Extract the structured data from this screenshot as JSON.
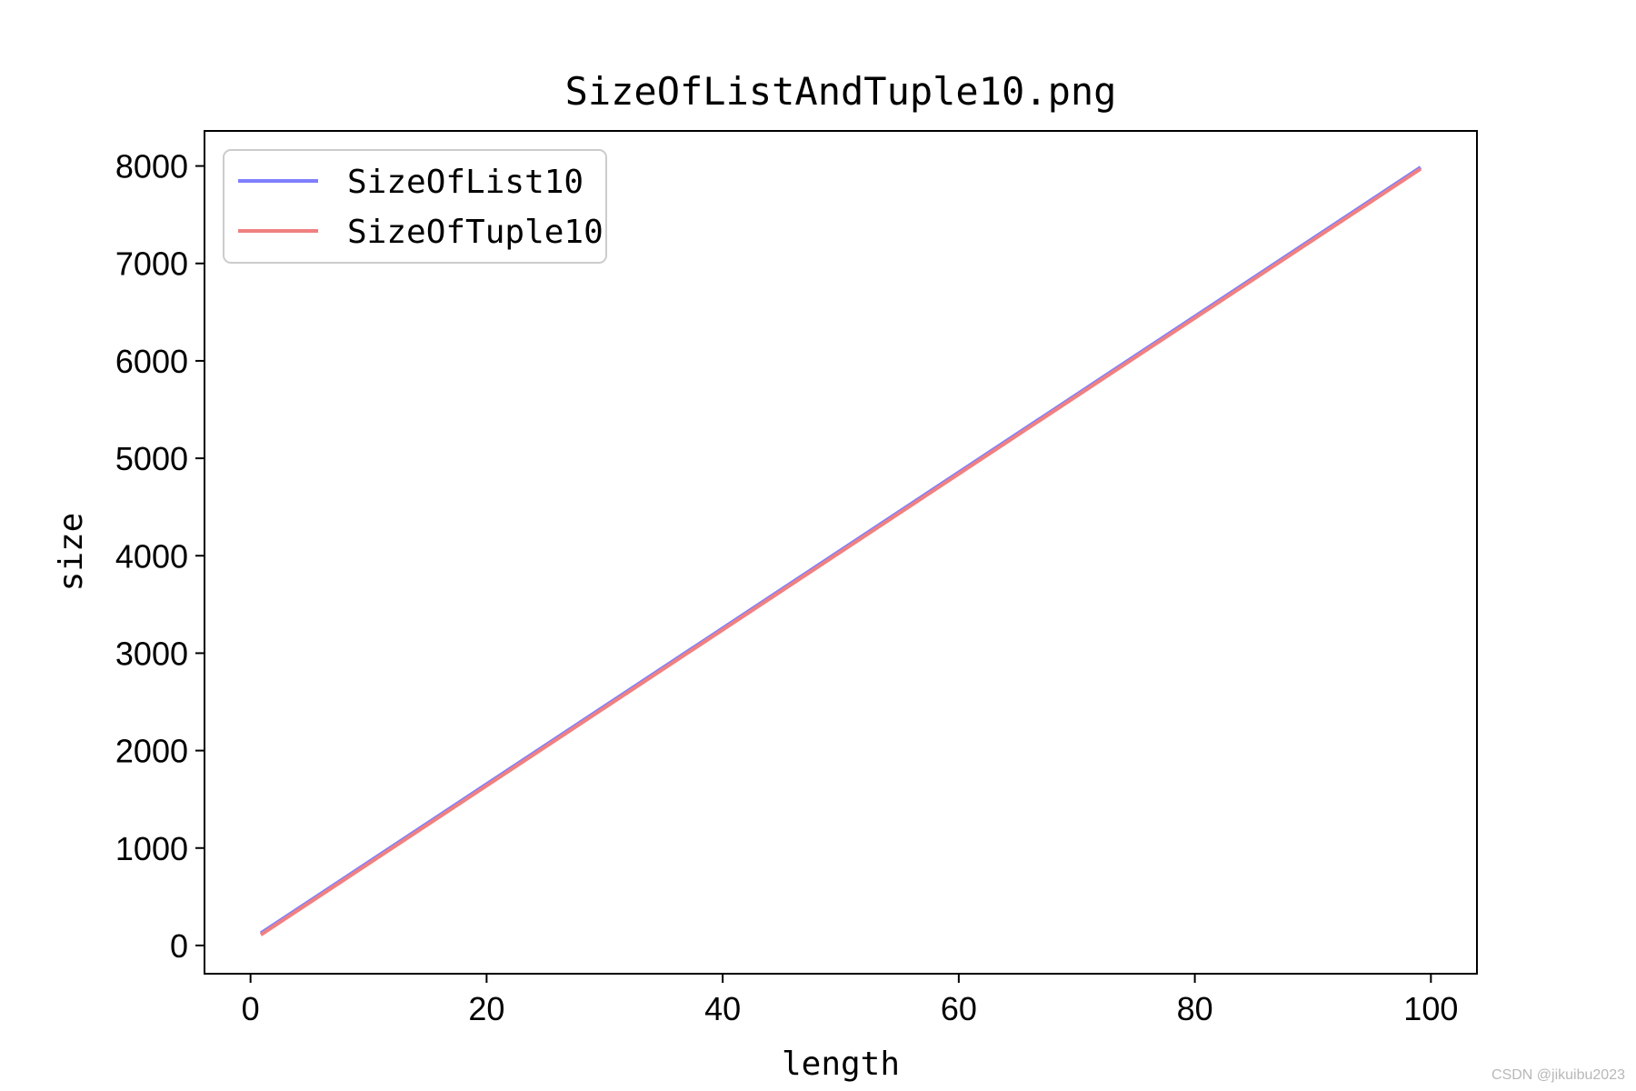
{
  "watermark": "CSDN @jikuibu2023",
  "chart_data": {
    "type": "line",
    "title": "SizeOfListAndTuple10.png",
    "xlabel": "length",
    "ylabel": "size",
    "xlim": [
      -3.9,
      103.9
    ],
    "ylim": [
      -290,
      8360
    ],
    "xticks": [
      0,
      20,
      40,
      60,
      80,
      100
    ],
    "yticks": [
      0,
      1000,
      2000,
      3000,
      4000,
      5000,
      6000,
      7000,
      8000
    ],
    "grid": false,
    "legend_position": "top-left",
    "series": [
      {
        "name": "SizeOfList10",
        "color": "#7f7fff",
        "x": [
          1,
          99
        ],
        "y": [
          136,
          7976
        ]
      },
      {
        "name": "SizeOfTuple10",
        "color": "#f08080",
        "x": [
          1,
          99
        ],
        "y": [
          120,
          7960
        ]
      }
    ]
  }
}
